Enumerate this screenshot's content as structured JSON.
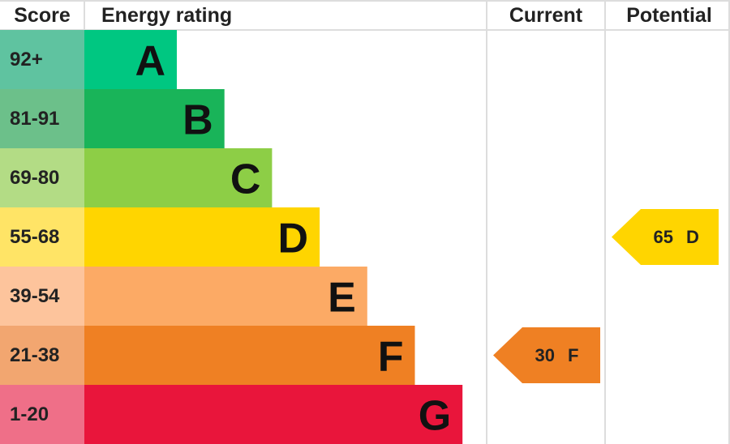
{
  "header": {
    "score": "Score",
    "rating": "Energy rating",
    "current": "Current",
    "potential": "Potential"
  },
  "bands": [
    {
      "score": "92+",
      "letter": "A",
      "color": "#00c781",
      "score_color": "#5fc3a0"
    },
    {
      "score": "81-91",
      "letter": "B",
      "color": "#19b459",
      "score_color": "#6cc08a"
    },
    {
      "score": "69-80",
      "letter": "C",
      "color": "#8dce46",
      "score_color": "#b3dc85"
    },
    {
      "score": "55-68",
      "letter": "D",
      "color": "#ffd500",
      "score_color": "#ffe466"
    },
    {
      "score": "39-54",
      "letter": "E",
      "color": "#fcaa65",
      "score_color": "#fdc49c"
    },
    {
      "score": "21-38",
      "letter": "F",
      "color": "#ef8023",
      "score_color": "#f2a670"
    },
    {
      "score": "1-20",
      "letter": "G",
      "color": "#e9153b",
      "score_color": "#ef6f88"
    }
  ],
  "current": {
    "value": 30,
    "letter": "F"
  },
  "potential": {
    "value": 65,
    "letter": "D"
  }
}
